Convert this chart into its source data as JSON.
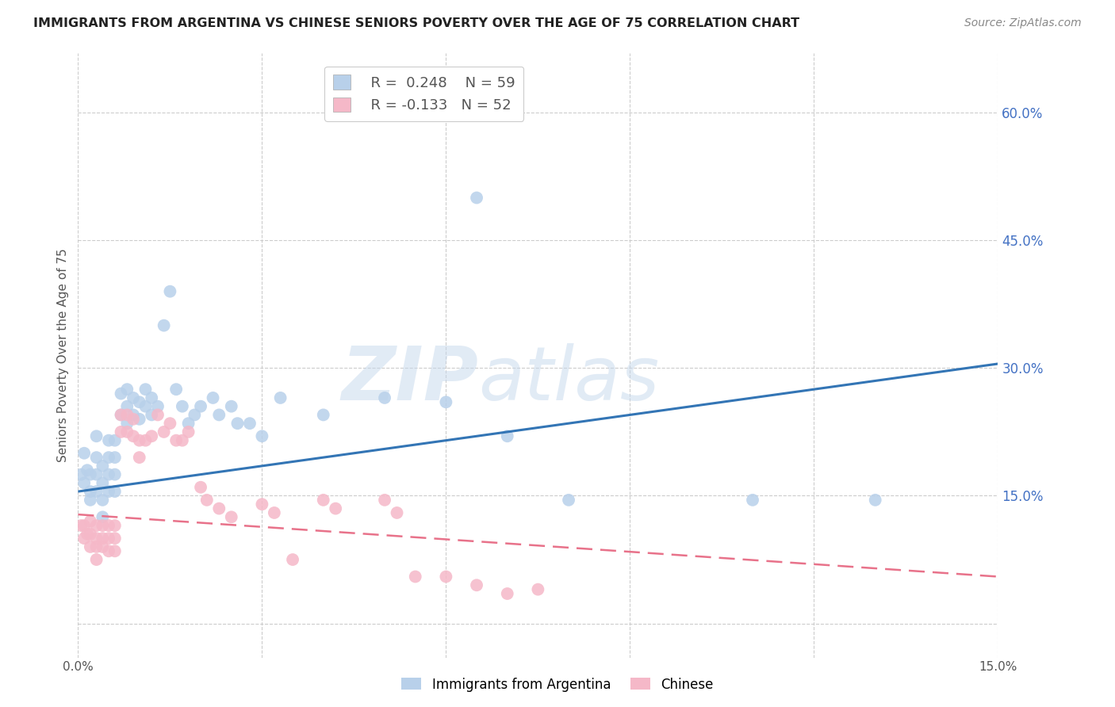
{
  "title": "IMMIGRANTS FROM ARGENTINA VS CHINESE SENIORS POVERTY OVER THE AGE OF 75 CORRELATION CHART",
  "source": "Source: ZipAtlas.com",
  "ylabel": "Seniors Poverty Over the Age of 75",
  "xlim": [
    0.0,
    0.15
  ],
  "ylim": [
    -0.04,
    0.67
  ],
  "yticks": [
    0.0,
    0.15,
    0.3,
    0.45,
    0.6
  ],
  "ytick_labels": [
    "",
    "15.0%",
    "30.0%",
    "45.0%",
    "60.0%"
  ],
  "argentina_R": 0.248,
  "argentina_N": 59,
  "chinese_R": -0.133,
  "chinese_N": 52,
  "argentina_color": "#b8d0ea",
  "chinese_color": "#f5b8c8",
  "argentina_line_color": "#3375b5",
  "chinese_line_color": "#e8728a",
  "grid_color": "#cccccc",
  "watermark_zip": "ZIP",
  "watermark_atlas": "atlas",
  "arg_line_x0": 0.0,
  "arg_line_y0": 0.155,
  "arg_line_x1": 0.15,
  "arg_line_y1": 0.305,
  "chi_line_x0": 0.0,
  "chi_line_y0": 0.128,
  "chi_line_x1": 0.15,
  "chi_line_y1": 0.055,
  "argentina_x": [
    0.0005,
    0.001,
    0.001,
    0.0015,
    0.002,
    0.002,
    0.002,
    0.003,
    0.003,
    0.003,
    0.003,
    0.004,
    0.004,
    0.004,
    0.004,
    0.005,
    0.005,
    0.005,
    0.005,
    0.006,
    0.006,
    0.006,
    0.006,
    0.007,
    0.007,
    0.008,
    0.008,
    0.008,
    0.009,
    0.009,
    0.01,
    0.01,
    0.011,
    0.011,
    0.012,
    0.012,
    0.013,
    0.014,
    0.015,
    0.016,
    0.017,
    0.018,
    0.019,
    0.02,
    0.022,
    0.023,
    0.025,
    0.026,
    0.028,
    0.03,
    0.033,
    0.04,
    0.05,
    0.06,
    0.065,
    0.07,
    0.08,
    0.11,
    0.13
  ],
  "argentina_y": [
    0.175,
    0.2,
    0.165,
    0.18,
    0.175,
    0.155,
    0.145,
    0.22,
    0.195,
    0.175,
    0.155,
    0.185,
    0.165,
    0.145,
    0.125,
    0.215,
    0.195,
    0.175,
    0.155,
    0.215,
    0.195,
    0.175,
    0.155,
    0.27,
    0.245,
    0.275,
    0.255,
    0.235,
    0.265,
    0.245,
    0.26,
    0.24,
    0.275,
    0.255,
    0.265,
    0.245,
    0.255,
    0.35,
    0.39,
    0.275,
    0.255,
    0.235,
    0.245,
    0.255,
    0.265,
    0.245,
    0.255,
    0.235,
    0.235,
    0.22,
    0.265,
    0.245,
    0.265,
    0.26,
    0.5,
    0.22,
    0.145,
    0.145,
    0.145
  ],
  "chinese_x": [
    0.0005,
    0.001,
    0.001,
    0.0015,
    0.002,
    0.002,
    0.002,
    0.003,
    0.003,
    0.003,
    0.003,
    0.004,
    0.004,
    0.004,
    0.005,
    0.005,
    0.005,
    0.006,
    0.006,
    0.006,
    0.007,
    0.007,
    0.008,
    0.008,
    0.009,
    0.009,
    0.01,
    0.01,
    0.011,
    0.012,
    0.013,
    0.014,
    0.015,
    0.016,
    0.017,
    0.018,
    0.02,
    0.021,
    0.023,
    0.025,
    0.03,
    0.032,
    0.035,
    0.04,
    0.042,
    0.05,
    0.052,
    0.055,
    0.06,
    0.065,
    0.07,
    0.075
  ],
  "chinese_y": [
    0.115,
    0.115,
    0.1,
    0.105,
    0.12,
    0.105,
    0.09,
    0.115,
    0.1,
    0.09,
    0.075,
    0.115,
    0.1,
    0.09,
    0.115,
    0.1,
    0.085,
    0.115,
    0.1,
    0.085,
    0.245,
    0.225,
    0.245,
    0.225,
    0.24,
    0.22,
    0.215,
    0.195,
    0.215,
    0.22,
    0.245,
    0.225,
    0.235,
    0.215,
    0.215,
    0.225,
    0.16,
    0.145,
    0.135,
    0.125,
    0.14,
    0.13,
    0.075,
    0.145,
    0.135,
    0.145,
    0.13,
    0.055,
    0.055,
    0.045,
    0.035,
    0.04
  ]
}
